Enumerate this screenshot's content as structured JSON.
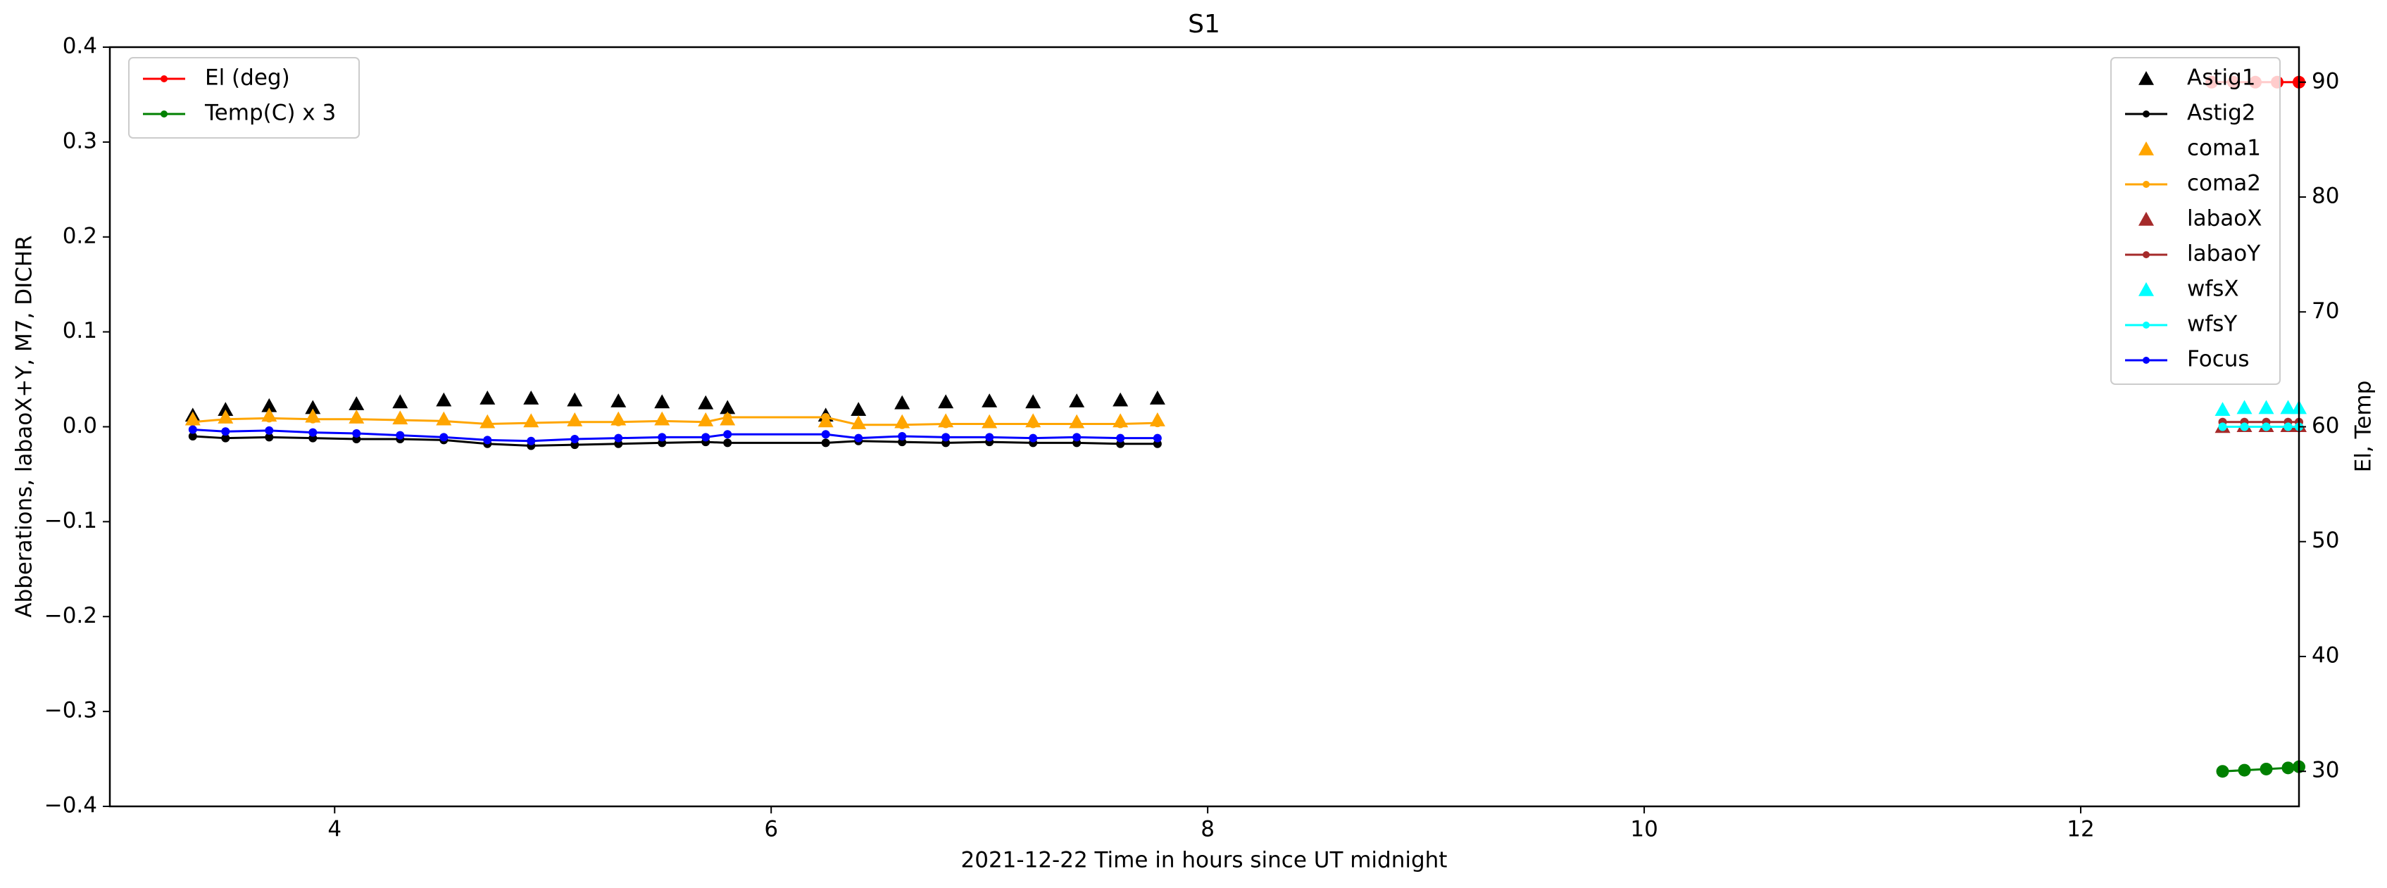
{
  "chart_data": {
    "type": "line",
    "title": "S1",
    "x_label": "2021-12-22  Time in hours since UT midnight",
    "y_label": "Abberations, labaoX+Y, M7, DICHR",
    "y2_label": "El, Temp",
    "xlim": [
      2.97,
      13.0
    ],
    "xticks": [
      4,
      6,
      8,
      10,
      12
    ],
    "ylim": [
      -0.4,
      0.4
    ],
    "yticks": [
      {
        "value": -0.4,
        "label": "−0.4"
      },
      {
        "value": -0.3,
        "label": "−0.3"
      },
      {
        "value": -0.2,
        "label": "−0.2"
      },
      {
        "value": -0.1,
        "label": "−0.1"
      },
      {
        "value": 0,
        "label": "0.0"
      },
      0.1,
      0.2,
      0.3,
      0.4
    ],
    "y2lim": [
      26.95,
      93.05
    ],
    "y2ticks": [
      30,
      40,
      50,
      60,
      70,
      80,
      90
    ],
    "legend": "upper right",
    "legend2": "upper left",
    "series": [
      {
        "name": "Astig1",
        "color": "#000000",
        "marker": "triangle",
        "linestyle": "none",
        "x": [
          3.35,
          3.5,
          3.7,
          3.9,
          4.1,
          4.3,
          4.5,
          4.7,
          4.9,
          5.1,
          5.3,
          5.5,
          5.7,
          5.8,
          6.25,
          6.4,
          6.6,
          6.8,
          7.0,
          7.2,
          7.4,
          7.6,
          7.77
        ],
        "values": [
          0.012,
          0.018,
          0.022,
          0.02,
          0.024,
          0.026,
          0.028,
          0.03,
          0.03,
          0.028,
          0.027,
          0.026,
          0.025,
          0.02,
          0.012,
          0.018,
          0.025,
          0.026,
          0.027,
          0.026,
          0.027,
          0.028,
          0.03
        ]
      },
      {
        "name": "Astig2",
        "color": "#000000",
        "marker": "dot",
        "linestyle": "solid",
        "x": [
          3.35,
          3.5,
          3.7,
          3.9,
          4.1,
          4.3,
          4.5,
          4.7,
          4.9,
          5.1,
          5.3,
          5.5,
          5.7,
          5.8,
          6.25,
          6.4,
          6.6,
          6.8,
          7.0,
          7.2,
          7.4,
          7.6,
          7.77
        ],
        "values": [
          -0.01,
          -0.012,
          -0.011,
          -0.012,
          -0.013,
          -0.013,
          -0.014,
          -0.018,
          -0.02,
          -0.019,
          -0.018,
          -0.017,
          -0.016,
          -0.017,
          -0.017,
          -0.015,
          -0.016,
          -0.017,
          -0.016,
          -0.017,
          -0.017,
          -0.018,
          -0.018
        ]
      },
      {
        "name": "coma1",
        "color": "#ffa500",
        "marker": "triangle",
        "linestyle": "none",
        "x": [
          3.35,
          3.5,
          3.7,
          3.9,
          4.1,
          4.3,
          4.5,
          4.7,
          4.9,
          5.1,
          5.3,
          5.5,
          5.7,
          5.8,
          6.25,
          6.4,
          6.6,
          6.8,
          7.0,
          7.2,
          7.4,
          7.6,
          7.77
        ],
        "values": [
          0.008,
          0.01,
          0.012,
          0.011,
          0.01,
          0.009,
          0.008,
          0.005,
          0.006,
          0.007,
          0.008,
          0.008,
          0.007,
          0.008,
          0.006,
          0.004,
          0.005,
          0.006,
          0.005,
          0.006,
          0.005,
          0.006,
          0.007
        ]
      },
      {
        "name": "coma2",
        "color": "#ffa500",
        "marker": "dot",
        "linestyle": "solid",
        "x": [
          3.35,
          3.5,
          3.7,
          3.9,
          4.1,
          4.3,
          4.5,
          4.7,
          4.9,
          5.1,
          5.3,
          5.5,
          5.7,
          5.8,
          6.25,
          6.4,
          6.6,
          6.8,
          7.0,
          7.2,
          7.4,
          7.6,
          7.77
        ],
        "values": [
          0.005,
          0.008,
          0.009,
          0.008,
          0.008,
          0.007,
          0.006,
          0.003,
          0.004,
          0.005,
          0.005,
          0.006,
          0.005,
          0.01,
          0.01,
          0.002,
          0.002,
          0.003,
          0.003,
          0.003,
          0.003,
          0.003,
          0.004
        ]
      },
      {
        "name": "labaoX",
        "color": "#a52a2a",
        "marker": "triangle",
        "linestyle": "none",
        "x": [
          12.65,
          12.75,
          12.85,
          12.95,
          13.0
        ],
        "values": [
          0.0,
          0.001,
          0.001,
          0.001,
          0.001
        ]
      },
      {
        "name": "labaoY",
        "color": "#a52a2a",
        "marker": "dot",
        "linestyle": "solid",
        "x": [
          12.65,
          12.75,
          12.85,
          12.95,
          13.0
        ],
        "values": [
          0.005,
          0.005,
          0.005,
          0.005,
          0.005
        ]
      },
      {
        "name": "wfsX",
        "color": "#00ffff",
        "marker": "triangle",
        "linestyle": "none",
        "x": [
          12.65,
          12.75,
          12.85,
          12.95,
          13.0
        ],
        "values": [
          0.018,
          0.02,
          0.02,
          0.02,
          0.02
        ]
      },
      {
        "name": "wfsY",
        "color": "#00ffff",
        "marker": "dot",
        "linestyle": "solid",
        "x": [
          12.65,
          12.75,
          12.85,
          12.95,
          13.0
        ],
        "values": [
          0.0,
          0.0,
          0.0,
          0.0,
          0.0
        ]
      },
      {
        "name": "Focus",
        "color": "#0000ff",
        "marker": "dot",
        "linestyle": "solid",
        "x": [
          3.35,
          3.5,
          3.7,
          3.9,
          4.1,
          4.3,
          4.5,
          4.7,
          4.9,
          5.1,
          5.3,
          5.5,
          5.7,
          5.8,
          6.25,
          6.4,
          6.6,
          6.8,
          7.0,
          7.2,
          7.4,
          7.6,
          7.77
        ],
        "values": [
          -0.003,
          -0.005,
          -0.004,
          -0.006,
          -0.007,
          -0.009,
          -0.011,
          -0.014,
          -0.015,
          -0.013,
          -0.012,
          -0.011,
          -0.011,
          -0.008,
          -0.008,
          -0.012,
          -0.01,
          -0.011,
          -0.011,
          -0.012,
          -0.011,
          -0.012,
          -0.012
        ]
      },
      {
        "name": "El (deg)",
        "color": "#ff0000",
        "marker": "dot",
        "linestyle": "solid",
        "axis": "y2",
        "x": [
          12.6,
          12.7,
          12.8,
          12.9,
          13.0
        ],
        "values": [
          90,
          90,
          90,
          90,
          90
        ]
      },
      {
        "name": "Temp(C) x 3",
        "color": "#008000",
        "marker": "dot",
        "linestyle": "solid",
        "axis": "y2",
        "x": [
          12.65,
          12.75,
          12.85,
          12.95,
          13.0
        ],
        "values": [
          30.0,
          30.1,
          30.2,
          30.3,
          30.4
        ]
      }
    ]
  }
}
